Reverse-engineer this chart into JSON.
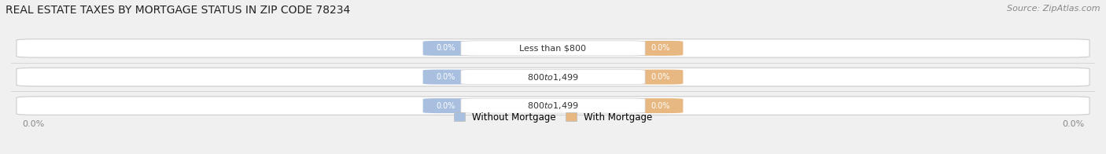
{
  "title": "REAL ESTATE TAXES BY MORTGAGE STATUS IN ZIP CODE 78234",
  "source": "Source: ZipAtlas.com",
  "categories": [
    "Less than $800",
    "$800 to $1,499",
    "$800 to $1,499"
  ],
  "without_mortgage": [
    0.0,
    0.0,
    0.0
  ],
  "with_mortgage": [
    0.0,
    0.0,
    0.0
  ],
  "bar_left_color": "#a8bfe0",
  "bar_right_color": "#e8b882",
  "bar_bg_gradient_left": "#d8d8d8",
  "bar_bg_gradient_right": "#ebebeb",
  "category_label_color": "#333333",
  "background_color": "#f0f0f0",
  "title_fontsize": 10,
  "source_fontsize": 8,
  "legend_label_left": "Without Mortgage",
  "legend_label_right": "With Mortgage",
  "axis_label_color": "#888888",
  "pill_label_color": "#ffffff",
  "cat_box_color": "#ffffff",
  "cat_box_edge_color": "#cccccc"
}
